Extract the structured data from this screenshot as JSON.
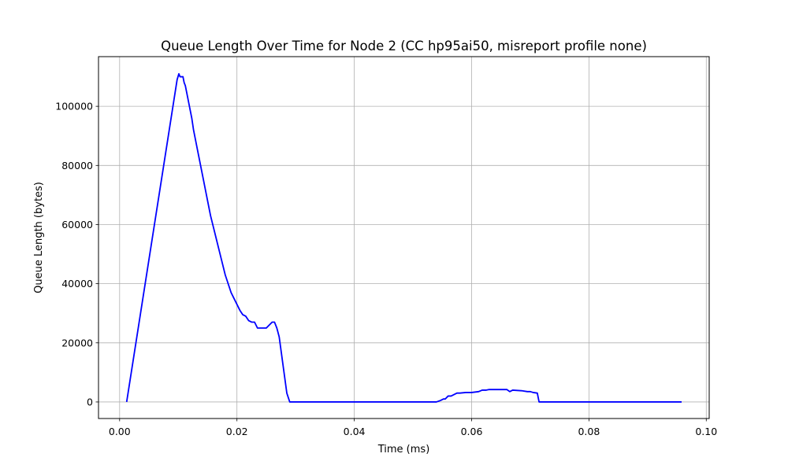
{
  "chart_data": {
    "type": "line",
    "title": "Queue Length Over Time for Node 2 (CC hp95ai50, misreport profile none)",
    "xlabel": "Time (ms)",
    "ylabel": "Queue Length (bytes)",
    "xlim": [
      -0.0036,
      0.1005
    ],
    "ylim": [
      -5600,
      116800
    ],
    "xticks": [
      0.0,
      0.02,
      0.04,
      0.06,
      0.08,
      0.1
    ],
    "xtick_labels": [
      "0.00",
      "0.02",
      "0.04",
      "0.06",
      "0.08",
      "0.10"
    ],
    "yticks": [
      0,
      20000,
      40000,
      60000,
      80000,
      100000
    ],
    "ytick_labels": [
      "0",
      "20000",
      "40000",
      "60000",
      "80000",
      "100000"
    ],
    "grid": true,
    "line_color": "#0000ff",
    "series": [
      {
        "name": "",
        "x": [
          0.0012,
          0.0098,
          0.0101,
          0.0103,
          0.0106,
          0.0108,
          0.011,
          0.0112,
          0.0114,
          0.0116,
          0.0118,
          0.012,
          0.0123,
          0.0126,
          0.013,
          0.0134,
          0.0138,
          0.0142,
          0.0146,
          0.015,
          0.0155,
          0.016,
          0.0165,
          0.017,
          0.0175,
          0.018,
          0.0185,
          0.019,
          0.0195,
          0.02,
          0.0205,
          0.021,
          0.0215,
          0.022,
          0.0225,
          0.023,
          0.0235,
          0.024,
          0.0245,
          0.025,
          0.0255,
          0.026,
          0.0264,
          0.0268,
          0.0272,
          0.0285,
          0.029,
          0.035,
          0.045,
          0.054,
          0.0547,
          0.0552,
          0.0555,
          0.056,
          0.0565,
          0.057,
          0.0575,
          0.058,
          0.059,
          0.06,
          0.0612,
          0.0618,
          0.0625,
          0.063,
          0.0645,
          0.066,
          0.0665,
          0.067,
          0.0685,
          0.0695,
          0.07,
          0.0705,
          0.0712,
          0.0715,
          0.0725,
          0.08,
          0.09,
          0.0958
        ],
        "values": [
          0,
          109000,
          111000,
          110000,
          110000,
          110000,
          108000,
          107000,
          105000,
          103000,
          101000,
          99000,
          96000,
          92000,
          88000,
          84000,
          80000,
          76000,
          72000,
          68000,
          63000,
          59000,
          55000,
          51000,
          47000,
          43000,
          40000,
          37000,
          35000,
          33000,
          31000,
          29500,
          29000,
          27500,
          27000,
          27000,
          25000,
          25000,
          25000,
          25000,
          26000,
          27000,
          27000,
          25000,
          22000,
          3000,
          0,
          0,
          0,
          0,
          500,
          1000,
          1000,
          2000,
          2000,
          2500,
          3000,
          3000,
          3200,
          3200,
          3500,
          4000,
          4000,
          4200,
          4200,
          4200,
          3500,
          4000,
          3800,
          3500,
          3500,
          3200,
          3000,
          0,
          0,
          0,
          0,
          0
        ]
      }
    ]
  }
}
